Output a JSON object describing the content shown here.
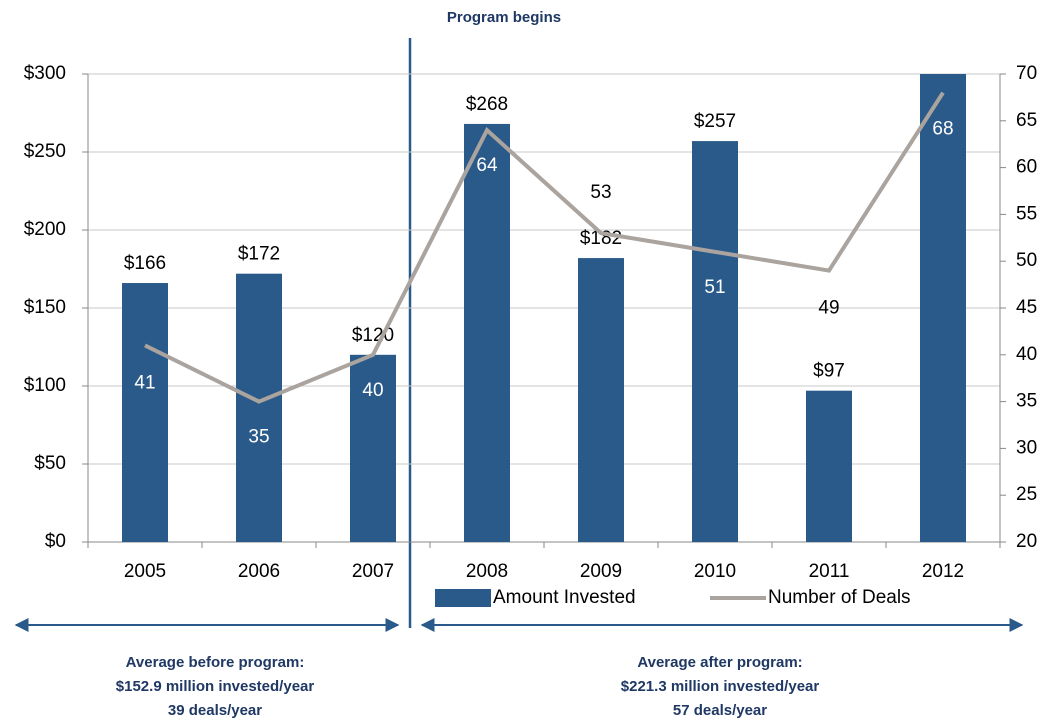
{
  "chart_data": {
    "type": "bar",
    "categories": [
      "2005",
      "2006",
      "2007",
      "2008",
      "2009",
      "2010",
      "2011",
      "2012"
    ],
    "series": [
      {
        "name": "Amount Invested",
        "type": "bar",
        "color": "#2a5a8a",
        "values": [
          166,
          172,
          120,
          268,
          182,
          257,
          97,
          300
        ],
        "value_labels": [
          "$166",
          "$172",
          "$120",
          "$268",
          "$182",
          "$257",
          "$97",
          null
        ]
      },
      {
        "name": "Number of Deals",
        "type": "line",
        "axis": "y2",
        "color": "#aaa39e",
        "values": [
          41,
          35,
          40,
          64,
          53,
          51,
          49,
          68
        ]
      }
    ],
    "ylim": [
      0,
      300
    ],
    "yticks": [
      {
        "value": 0,
        "label": "$0"
      },
      {
        "value": 50,
        "label": "$50"
      },
      {
        "value": 100,
        "label": "$100"
      },
      {
        "value": 150,
        "label": "$150"
      },
      {
        "value": 200,
        "label": "$200"
      },
      {
        "value": 250,
        "label": "$250"
      },
      {
        "value": 300,
        "label": "$300"
      }
    ],
    "y2lim": [
      20,
      70
    ],
    "y2ticks": [
      20,
      25,
      30,
      35,
      40,
      45,
      50,
      55,
      60,
      65,
      70
    ],
    "grid": true,
    "legend": "bottom",
    "annotations": [
      "Program begins",
      "Average before program:",
      "$152.9 million invested/year",
      "39 deals/year",
      "Average after program:",
      "$221.3 million invested/year",
      "57 deals/year"
    ]
  }
}
